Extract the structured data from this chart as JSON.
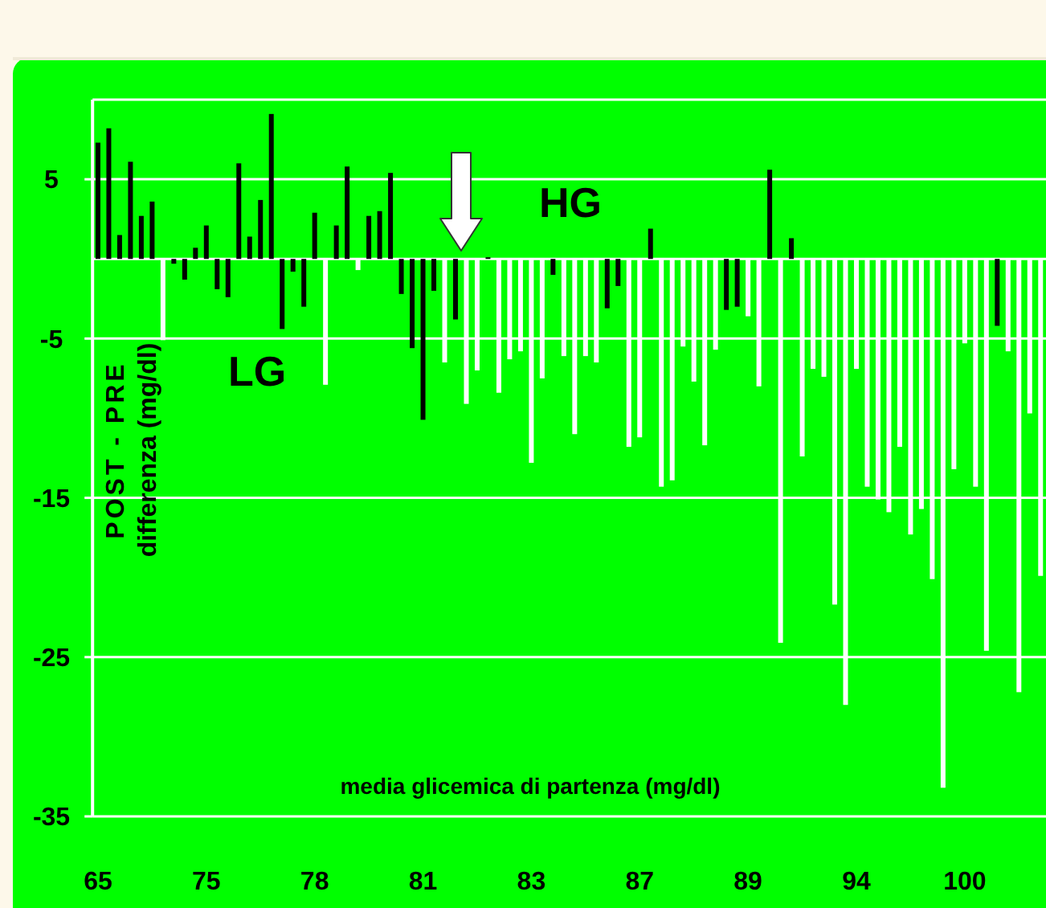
{
  "chart_data": {
    "type": "bar",
    "categories": [
      "65",
      null,
      null,
      null,
      null,
      null,
      null,
      null,
      null,
      null,
      "75",
      null,
      null,
      null,
      null,
      null,
      null,
      null,
      null,
      null,
      "78",
      null,
      null,
      null,
      null,
      null,
      null,
      null,
      null,
      null,
      "81",
      null,
      null,
      null,
      null,
      null,
      null,
      null,
      null,
      null,
      "83",
      null,
      null,
      null,
      null,
      null,
      null,
      null,
      null,
      null,
      "87",
      null,
      null,
      null,
      null,
      null,
      null,
      null,
      null,
      null,
      "89",
      null,
      null,
      null,
      null,
      null,
      null,
      null,
      null,
      null,
      "94",
      null,
      null,
      null,
      null,
      null,
      null,
      null,
      null,
      null,
      "100",
      null,
      null,
      null,
      null,
      null,
      null,
      null
    ],
    "values": [
      7.3,
      8.2,
      1.5,
      6.1,
      2.7,
      3.6,
      -5.1,
      -0.3,
      -1.3,
      0.7,
      2.1,
      -1.9,
      -2.4,
      6.0,
      1.4,
      3.7,
      9.1,
      -4.4,
      -0.8,
      -3.0,
      2.9,
      -7.9,
      2.1,
      5.8,
      -0.7,
      2.7,
      3.0,
      5.4,
      -2.2,
      -5.6,
      -10.1,
      -2.0,
      -6.5,
      -3.8,
      -9.1,
      -7.0,
      0.1,
      -8.4,
      -6.3,
      -5.8,
      -12.8,
      -7.5,
      -1.0,
      -6.1,
      -11.0,
      -6.1,
      -6.5,
      -3.1,
      -1.7,
      -11.8,
      -11.2,
      1.9,
      -14.3,
      -13.9,
      -5.5,
      -7.7,
      -11.7,
      -5.7,
      -3.2,
      -3.0,
      -3.6,
      -8.0,
      5.6,
      -24.1,
      1.3,
      -12.4,
      -6.9,
      -7.4,
      -21.7,
      -28.0,
      -6.9,
      -14.3,
      -15.1,
      -15.9,
      -11.8,
      -17.3,
      -15.7,
      -20.1,
      -33.2,
      -13.2,
      -5.3,
      -14.3,
      -24.6,
      -4.2,
      -5.8,
      -27.2,
      -9.7,
      -19.9
    ],
    "colors": [
      "#000000",
      "#000000",
      "#000000",
      "#000000",
      "#000000",
      "#000000",
      "#ffffff",
      "#000000",
      "#000000",
      "#000000",
      "#000000",
      "#000000",
      "#000000",
      "#000000",
      "#000000",
      "#000000",
      "#000000",
      "#000000",
      "#000000",
      "#000000",
      "#000000",
      "#ffffff",
      "#000000",
      "#000000",
      "#ffffff",
      "#000000",
      "#000000",
      "#000000",
      "#000000",
      "#000000",
      "#000000",
      "#000000",
      "#ffffff",
      "#000000",
      "#ffffff",
      "#ffffff",
      "#000000",
      "#ffffff",
      "#ffffff",
      "#ffffff",
      "#ffffff",
      "#ffffff",
      "#000000",
      "#ffffff",
      "#ffffff",
      "#ffffff",
      "#ffffff",
      "#000000",
      "#000000",
      "#ffffff",
      "#ffffff",
      "#000000",
      "#ffffff",
      "#ffffff",
      "#ffffff",
      "#ffffff",
      "#ffffff",
      "#ffffff",
      "#000000",
      "#000000",
      "#ffffff",
      "#ffffff",
      "#000000",
      "#ffffff",
      "#000000",
      "#ffffff",
      "#ffffff",
      "#ffffff",
      "#ffffff",
      "#ffffff",
      "#ffffff",
      "#ffffff",
      "#ffffff",
      "#ffffff",
      "#ffffff",
      "#ffffff",
      "#ffffff",
      "#ffffff",
      "#ffffff",
      "#ffffff",
      "#ffffff",
      "#ffffff",
      "#ffffff",
      "#000000",
      "#ffffff",
      "#ffffff",
      "#ffffff",
      "#ffffff"
    ],
    "ylim": [
      -35,
      10
    ],
    "yticks": [
      5,
      -5,
      -15,
      -25,
      -35
    ],
    "grid": "y",
    "xlabel": "media glicemica di partenza (mg/dl)",
    "ylabel": "POST - PRE\ndifferenza (mg/dl)",
    "annotations": [
      "LG",
      "HG"
    ]
  }
}
